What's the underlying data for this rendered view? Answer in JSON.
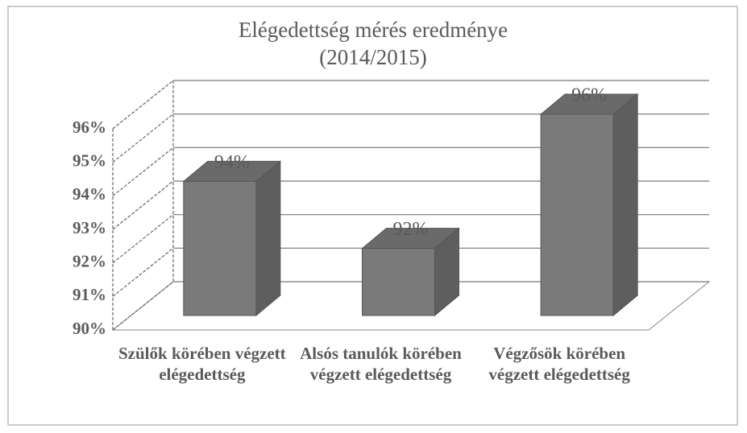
{
  "chart_data": {
    "type": "bar3d",
    "title": "Elégedettség mérés eredménye",
    "subtitle": "(2014/2015)",
    "categories": [
      "Szülők körében végzett elégedettség",
      "Alsós tanulók körében végzett elégedettség",
      "Végzősök körében végzett elégedettség"
    ],
    "values": [
      94,
      92,
      96
    ],
    "value_labels": [
      "94%",
      "92%",
      "96%"
    ],
    "color": "#7a7a7a",
    "ylim": [
      90,
      96
    ],
    "yticks": [
      {
        "value": 90,
        "label": "90%"
      },
      {
        "value": 91,
        "label": "91%"
      },
      {
        "value": 92,
        "label": "92%"
      },
      {
        "value": 93,
        "label": "93%"
      },
      {
        "value": 94,
        "label": "94%"
      },
      {
        "value": 95,
        "label": "95%"
      },
      {
        "value": 96,
        "label": "96%"
      }
    ],
    "grid": true
  }
}
